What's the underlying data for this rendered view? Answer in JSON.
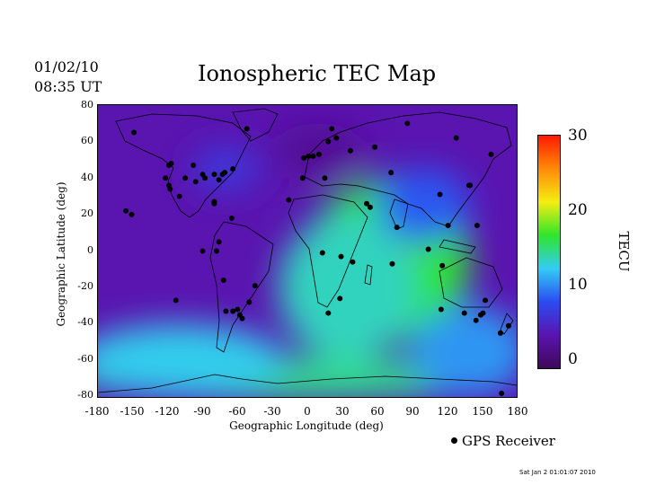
{
  "header": {
    "date": "01/02/10",
    "time": "08:35 UT",
    "title": "Ionospheric TEC Map"
  },
  "axes": {
    "xlabel": "Geographic Longitude (deg)",
    "ylabel": "Geographic Latitude (deg)",
    "xlim": [
      -180,
      180
    ],
    "ylim": [
      -80,
      80
    ],
    "xticks": [
      "-180",
      "-150",
      "-120",
      "-90",
      "-60",
      "-30",
      "0",
      "30",
      "60",
      "90",
      "120",
      "150",
      "180"
    ],
    "yticks": [
      "80",
      "60",
      "40",
      "20",
      "0",
      "-20",
      "-40",
      "-60",
      "-80"
    ]
  },
  "colorbar": {
    "unit": "TECU",
    "range": [
      0,
      30
    ],
    "ticks": [
      "30",
      "20",
      "10",
      "0"
    ],
    "colors": [
      "#3f0858",
      "#5a14b0",
      "#2a4cf2",
      "#33ccf4",
      "#2fe52a",
      "#f4ee12",
      "#ff8a08",
      "#ff1a00"
    ]
  },
  "legend": {
    "label": "GPS Receiver"
  },
  "footer": {
    "timestamp": "Sat Jan  2 01:01:07 2010"
  },
  "map": {
    "background_color": "#5a14b0",
    "tec_regions": [
      {
        "lon": 70,
        "lat": -5,
        "rx": 70,
        "ry": 45,
        "tec": 17
      },
      {
        "lon": 68,
        "lat": -6,
        "rx": 18,
        "ry": 14,
        "tec": 27
      },
      {
        "lon": 35,
        "lat": -20,
        "rx": 60,
        "ry": 40,
        "tec": 14
      },
      {
        "lon": 100,
        "lat": 25,
        "rx": 40,
        "ry": 20,
        "tec": 9
      },
      {
        "lon": -10,
        "lat": -70,
        "rx": 190,
        "ry": 12,
        "tec": 15
      },
      {
        "lon": -110,
        "lat": -60,
        "rx": 90,
        "ry": 20,
        "tec": 13
      },
      {
        "lon": 140,
        "lat": -55,
        "rx": 50,
        "ry": 25,
        "tec": 11
      },
      {
        "lon": -70,
        "lat": 45,
        "rx": 30,
        "ry": 12,
        "tec": 7
      },
      {
        "lon": 10,
        "lat": 55,
        "rx": 40,
        "ry": 15,
        "tec": 3
      }
    ],
    "receivers": [
      [
        -149,
        65
      ],
      [
        -117,
        48
      ],
      [
        -119,
        47
      ],
      [
        -122,
        40
      ],
      [
        -119,
        36
      ],
      [
        -118,
        34
      ],
      [
        -105,
        40
      ],
      [
        -98,
        47
      ],
      [
        -96,
        38
      ],
      [
        -90,
        42
      ],
      [
        -88,
        40
      ],
      [
        -80,
        42
      ],
      [
        -76,
        39
      ],
      [
        -73,
        42
      ],
      [
        -71,
        43
      ],
      [
        -64,
        45
      ],
      [
        -80,
        27
      ],
      [
        -80,
        26
      ],
      [
        -110,
        30
      ],
      [
        -65,
        18
      ],
      [
        -156,
        22
      ],
      [
        -151,
        20
      ],
      [
        -113,
        -27
      ],
      [
        -90,
        0
      ],
      [
        -78,
        0
      ],
      [
        -76,
        5
      ],
      [
        -72,
        -16
      ],
      [
        -70,
        -33
      ],
      [
        -64,
        -33
      ],
      [
        -58,
        -35
      ],
      [
        -56,
        -37
      ],
      [
        -60,
        -32
      ],
      [
        -50,
        -28
      ],
      [
        -45,
        -19
      ],
      [
        -52,
        67
      ],
      [
        -16,
        28
      ],
      [
        -4,
        40
      ],
      [
        -3,
        51
      ],
      [
        1,
        52
      ],
      [
        5,
        52
      ],
      [
        10,
        53
      ],
      [
        15,
        40
      ],
      [
        18,
        60
      ],
      [
        21,
        67
      ],
      [
        25,
        62
      ],
      [
        37,
        55
      ],
      [
        58,
        57
      ],
      [
        72,
        43
      ],
      [
        51,
        26
      ],
      [
        54,
        24
      ],
      [
        77,
        13
      ],
      [
        39,
        -6
      ],
      [
        13,
        -1
      ],
      [
        29,
        -3
      ],
      [
        18,
        -34
      ],
      [
        28,
        -26
      ],
      [
        73,
        -7
      ],
      [
        86,
        70
      ],
      [
        128,
        62
      ],
      [
        104,
        1
      ],
      [
        116,
        -8
      ],
      [
        114,
        31
      ],
      [
        121,
        14
      ],
      [
        139,
        36
      ],
      [
        140,
        36
      ],
      [
        146,
        14
      ],
      [
        158,
        53
      ],
      [
        115,
        -32
      ],
      [
        135,
        -34
      ],
      [
        145,
        -38
      ],
      [
        149,
        -35
      ],
      [
        151,
        -34
      ],
      [
        153,
        -27
      ],
      [
        166,
        -45
      ],
      [
        167,
        -78
      ],
      [
        173,
        -41
      ]
    ]
  }
}
